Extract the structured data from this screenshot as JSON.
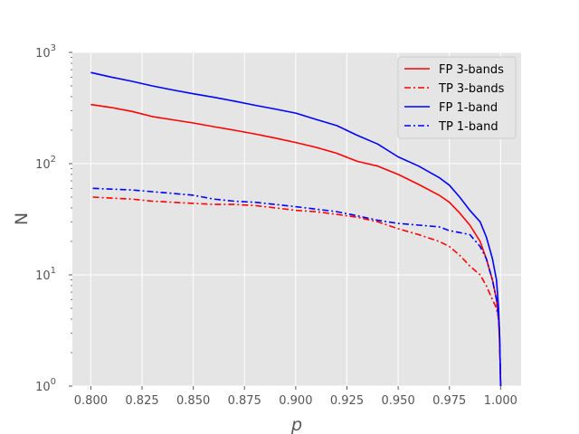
{
  "chart_data": {
    "type": "line",
    "title": "",
    "xlabel": "p",
    "ylabel": "N",
    "xlim": [
      0.791,
      1.01
    ],
    "ylim": [
      1,
      1000
    ],
    "yscale": "log",
    "grid": true,
    "legend_position": "top-right",
    "xticks": [
      "0.800",
      "0.825",
      "0.850",
      "0.875",
      "0.900",
      "0.925",
      "0.950",
      "0.975",
      "1.000"
    ],
    "xtick_values": [
      0.8,
      0.825,
      0.85,
      0.875,
      0.9,
      0.925,
      0.95,
      0.975,
      1.0
    ],
    "yticks": [
      {
        "value": 1,
        "base": "10",
        "exp": "0"
      },
      {
        "value": 10,
        "base": "10",
        "exp": "1"
      },
      {
        "value": 100,
        "base": "10",
        "exp": "2"
      },
      {
        "value": 1000,
        "base": "10",
        "exp": "3"
      }
    ],
    "series": [
      {
        "name": "FP 3-bands",
        "color": "#ff0000",
        "dash": "solid",
        "x": [
          0.8,
          0.81,
          0.82,
          0.83,
          0.84,
          0.85,
          0.86,
          0.87,
          0.88,
          0.89,
          0.9,
          0.91,
          0.92,
          0.93,
          0.94,
          0.95,
          0.96,
          0.97,
          0.975,
          0.98,
          0.985,
          0.99,
          0.993,
          0.996,
          0.998,
          0.999,
          0.9995,
          1.0
        ],
        "y": [
          340,
          320,
          295,
          265,
          248,
          232,
          215,
          200,
          185,
          170,
          155,
          140,
          124,
          105,
          95,
          80,
          65,
          52,
          45,
          36,
          28,
          20,
          14,
          9,
          6,
          4,
          2.5,
          1
        ]
      },
      {
        "name": "TP 3-bands",
        "color": "#ff0000",
        "dash": "dashdot",
        "x": [
          0.801,
          0.81,
          0.82,
          0.83,
          0.84,
          0.85,
          0.86,
          0.87,
          0.88,
          0.89,
          0.9,
          0.91,
          0.92,
          0.93,
          0.94,
          0.95,
          0.96,
          0.97,
          0.975,
          0.98,
          0.985,
          0.99,
          0.993,
          0.996,
          0.998,
          0.999,
          0.9995,
          1.0
        ],
        "y": [
          50,
          49,
          48,
          46,
          45,
          44,
          43,
          43,
          42,
          40,
          38,
          37,
          35,
          33,
          30,
          26,
          23,
          20,
          18,
          15,
          12,
          10,
          8,
          6,
          5,
          4,
          3,
          1
        ]
      },
      {
        "name": "FP 1-band",
        "color": "#0000ff",
        "dash": "solid",
        "x": [
          0.8,
          0.81,
          0.82,
          0.83,
          0.84,
          0.85,
          0.86,
          0.87,
          0.88,
          0.89,
          0.9,
          0.91,
          0.92,
          0.93,
          0.94,
          0.95,
          0.96,
          0.97,
          0.975,
          0.98,
          0.985,
          0.99,
          0.993,
          0.996,
          0.998,
          0.999,
          0.9995,
          1.0
        ],
        "y": [
          660,
          600,
          550,
          500,
          460,
          425,
          395,
          365,
          335,
          310,
          285,
          250,
          220,
          180,
          150,
          115,
          95,
          75,
          64,
          50,
          38,
          30,
          22,
          14,
          9,
          5,
          3,
          1
        ]
      },
      {
        "name": "TP 1-band",
        "color": "#0000ff",
        "dash": "dashdot",
        "x": [
          0.801,
          0.81,
          0.82,
          0.83,
          0.84,
          0.85,
          0.86,
          0.87,
          0.88,
          0.89,
          0.9,
          0.91,
          0.92,
          0.93,
          0.94,
          0.95,
          0.96,
          0.97,
          0.975,
          0.98,
          0.985,
          0.99,
          0.993,
          0.996,
          0.998,
          0.999,
          0.9995,
          1.0
        ],
        "y": [
          60,
          59,
          58,
          56,
          54,
          52,
          48,
          46,
          45,
          43,
          41,
          39,
          37,
          34,
          31,
          29,
          28,
          27,
          25,
          24,
          23,
          18,
          14,
          9,
          6,
          4,
          3,
          1
        ]
      }
    ]
  }
}
